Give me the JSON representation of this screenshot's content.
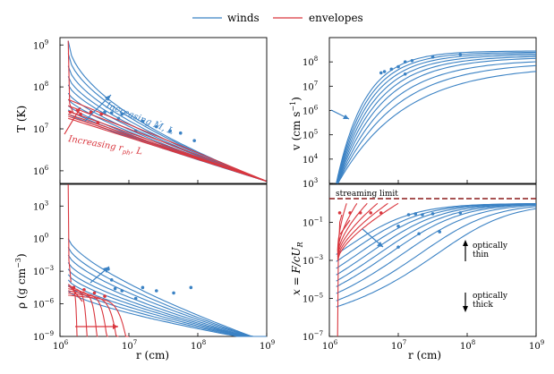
{
  "legend": {
    "winds": "winds",
    "envelopes": "envelopes",
    "winds_color": "#3b82c4",
    "envelopes_color": "#d9363e"
  },
  "chart_data": [
    {
      "panel": "top-left",
      "type": "line",
      "xlabel": "r (cm)",
      "ylabel": "T (K)",
      "xscale": "log",
      "yscale": "log",
      "xlim": [
        1000000.0,
        1000000000.0
      ],
      "ylim": [
        500000.0,
        1500000000.0
      ],
      "xticks": [
        "10^6",
        "10^7",
        "10^8",
        "10^9"
      ],
      "yticks": [
        "10^6",
        "10^7",
        "10^8",
        "10^9"
      ],
      "annotation_winds": "Increasing Ṁ, L",
      "annotation_envelopes": "Increasing r_ph, L"
    },
    {
      "panel": "top-right",
      "type": "line",
      "xlabel": "r (cm)",
      "ylabel": "v (cm s⁻¹)",
      "xscale": "log",
      "yscale": "log",
      "xlim": [
        1000000.0,
        1000000000.0
      ],
      "ylim": [
        1000.0,
        1000000000.0
      ],
      "xticks": [
        "10^6",
        "10^7",
        "10^8",
        "10^9"
      ],
      "yticks": [
        "10^3",
        "10^4",
        "10^5",
        "10^6",
        "10^7",
        "10^8"
      ]
    },
    {
      "panel": "bottom-left",
      "type": "line",
      "xlabel": "r (cm)",
      "ylabel": "ρ (g cm⁻³)",
      "xscale": "log",
      "yscale": "log",
      "xlim": [
        1000000.0,
        1000000000.0
      ],
      "ylim": [
        1e-09,
        100000.0
      ],
      "xticks": [
        "10^6",
        "10^7",
        "10^8",
        "10^9"
      ],
      "yticks": [
        "10^-9",
        "10^-6",
        "10^-3",
        "10^0",
        "10^3"
      ]
    },
    {
      "panel": "bottom-right",
      "type": "line",
      "xlabel": "r (cm)",
      "ylabel": "x = F/cU_R",
      "xscale": "log",
      "yscale": "log",
      "xlim": [
        1000000.0,
        1000000000.0
      ],
      "ylim": [
        1e-07,
        10.0
      ],
      "xticks": [
        "10^6",
        "10^7",
        "10^8",
        "10^9"
      ],
      "yticks": [
        "10^-7",
        "10^-5",
        "10^-3",
        "10^-1"
      ],
      "annotation_limit": "streaming limit",
      "annotation_thin_1": "optically",
      "annotation_thin_2": "thin",
      "annotation_thick_1": "optically",
      "annotation_thick_2": "thick"
    }
  ],
  "text": {
    "tl_ylabel": "T (K)",
    "tr_ylabel": "v (cm s",
    "bl_ylabel": "ρ (g cm",
    "br_ylabel": "x = F/cU",
    "xlabel_left": "r (cm)",
    "xlabel_right": "r (cm)",
    "wind_ann": "Increasing Ṁ, L",
    "env_ann": "Increasing r",
    "env_ann_sub": "ph",
    "env_ann_tail": ", L",
    "streaming": "streaming limit",
    "thin1": "optically",
    "thin2": "thin",
    "thick1": "optically",
    "thick2": "thick",
    "tick_1e6": "10",
    "tick_1e7": "10",
    "tick_1e8": "10",
    "tick_1e9": "10"
  }
}
